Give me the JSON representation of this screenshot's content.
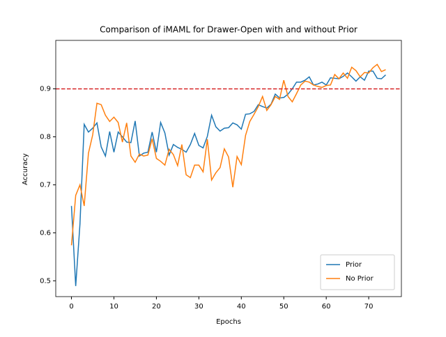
{
  "chart_data": {
    "type": "line",
    "title": "Comparison of iMAML for Drawer-Open with and without Prior",
    "xlabel": "Epochs",
    "ylabel": "Accuracy",
    "x": [
      0,
      1,
      2,
      3,
      4,
      5,
      6,
      7,
      8,
      9,
      10,
      11,
      12,
      13,
      14,
      15,
      16,
      17,
      18,
      19,
      20,
      21,
      22,
      23,
      24,
      25,
      26,
      27,
      28,
      29,
      30,
      31,
      32,
      33,
      34,
      35,
      36,
      37,
      38,
      39,
      40,
      41,
      42,
      43,
      44,
      45,
      46,
      47,
      48,
      49,
      50,
      51,
      52,
      53,
      54,
      55,
      56,
      57,
      58,
      59,
      60,
      61,
      62,
      63,
      64,
      65,
      66,
      67,
      68,
      69,
      70,
      71,
      72,
      73,
      74
    ],
    "series": [
      {
        "name": "Prior",
        "color": "#1f77b4",
        "values": [
          0.656,
          0.489,
          0.618,
          0.826,
          0.81,
          0.818,
          0.829,
          0.779,
          0.76,
          0.811,
          0.768,
          0.81,
          0.8,
          0.789,
          0.788,
          0.833,
          0.76,
          0.766,
          0.768,
          0.81,
          0.768,
          0.83,
          0.808,
          0.762,
          0.784,
          0.778,
          0.774,
          0.768,
          0.784,
          0.807,
          0.782,
          0.777,
          0.801,
          0.845,
          0.821,
          0.812,
          0.818,
          0.819,
          0.829,
          0.825,
          0.816,
          0.847,
          0.848,
          0.853,
          0.867,
          0.863,
          0.86,
          0.868,
          0.889,
          0.881,
          0.882,
          0.889,
          0.9,
          0.914,
          0.914,
          0.918,
          0.925,
          0.908,
          0.91,
          0.914,
          0.908,
          0.923,
          0.922,
          0.921,
          0.926,
          0.933,
          0.925,
          0.916,
          0.925,
          0.918,
          0.937,
          0.937,
          0.922,
          0.921,
          0.929
        ]
      },
      {
        "name": "No Prior",
        "color": "#ff7f0e",
        "values": [
          0.574,
          0.678,
          0.7,
          0.656,
          0.766,
          0.804,
          0.87,
          0.867,
          0.845,
          0.832,
          0.841,
          0.83,
          0.789,
          0.829,
          0.76,
          0.747,
          0.764,
          0.76,
          0.762,
          0.796,
          0.755,
          0.749,
          0.741,
          0.774,
          0.763,
          0.74,
          0.784,
          0.721,
          0.715,
          0.741,
          0.741,
          0.727,
          0.795,
          0.71,
          0.725,
          0.736,
          0.775,
          0.758,
          0.695,
          0.759,
          0.742,
          0.803,
          0.832,
          0.847,
          0.863,
          0.884,
          0.855,
          0.867,
          0.884,
          0.878,
          0.918,
          0.884,
          0.873,
          0.89,
          0.908,
          0.916,
          0.914,
          0.908,
          0.905,
          0.903,
          0.907,
          0.908,
          0.93,
          0.921,
          0.933,
          0.922,
          0.945,
          0.938,
          0.925,
          0.934,
          0.933,
          0.944,
          0.951,
          0.936,
          0.94
        ]
      }
    ],
    "hline": {
      "value": 0.9,
      "color": "#d62728"
    },
    "xlim": [
      -3.7,
      77.7
    ],
    "ylim": [
      0.467,
      1.001
    ],
    "xticks": [
      0,
      10,
      20,
      30,
      40,
      50,
      60,
      70
    ],
    "yticks": [
      0.5,
      0.6,
      0.7,
      0.8,
      0.9
    ],
    "legend": "lower right"
  }
}
